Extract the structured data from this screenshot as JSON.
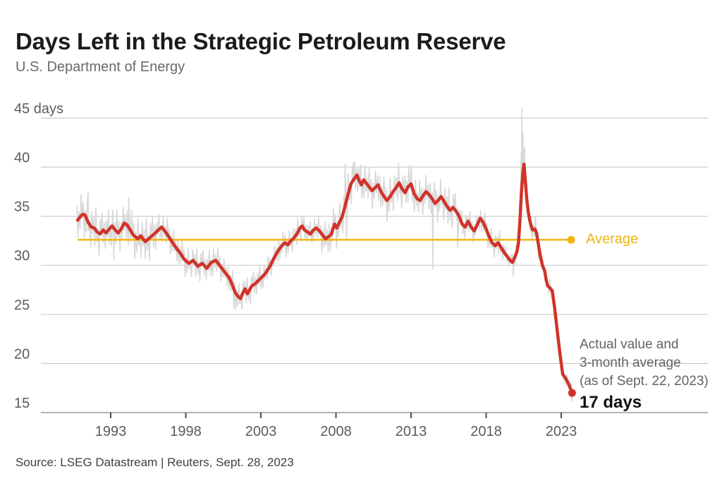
{
  "header": {
    "title": "Days Left in the Strategic Petroleum Reserve",
    "subtitle": "U.S. Department of Energy"
  },
  "source": "Source: LSEG Datastream | Reuters, Sept. 28, 2023",
  "colors": {
    "red": "#d0332a",
    "gray_series": "#d8d8d8",
    "yellow": "#f1b40f",
    "grid": "#cdcdcd",
    "axis": "#9e9e9e",
    "tick": "#4c4c4c",
    "title_text": "#1b1b1b",
    "muted_text": "#636363"
  },
  "chart_data": {
    "type": "line",
    "title": "Days Left in the Strategic Petroleum Reserve",
    "subtitle": "U.S. Department of Energy",
    "unit": "days",
    "ylim": [
      15,
      45
    ],
    "xlim": [
      1990.5,
      2024.3
    ],
    "grid": "horizontal",
    "legend_position": "none",
    "y_ticks": [
      {
        "value": 45,
        "label": "45 days"
      },
      {
        "value": 40,
        "label": "40"
      },
      {
        "value": 35,
        "label": "35"
      },
      {
        "value": 30,
        "label": "30"
      },
      {
        "value": 25,
        "label": "25"
      },
      {
        "value": 20,
        "label": "20"
      },
      {
        "value": 15,
        "label": "15"
      }
    ],
    "x_ticks": [
      "1993",
      "1998",
      "2003",
      "2008",
      "2013",
      "2018",
      "2023"
    ],
    "average": {
      "label": "Average",
      "value": 32.6,
      "x_start": 1990.8,
      "x_end": 2023.66
    },
    "annotation": {
      "lines": [
        "Actual value and",
        "3-month average",
        "(as of Sept. 22, 2023)"
      ],
      "end_label": "17 days",
      "end_value": 17,
      "end_year": 2023.72
    },
    "series": [
      {
        "name": "3-month average",
        "color_key": "red",
        "points": [
          [
            1990.8,
            34.6
          ],
          [
            1991.0,
            35.0
          ],
          [
            1991.15,
            35.2
          ],
          [
            1991.3,
            35.1
          ],
          [
            1991.5,
            34.4
          ],
          [
            1991.7,
            33.9
          ],
          [
            1991.9,
            33.8
          ],
          [
            1992.1,
            33.4
          ],
          [
            1992.3,
            33.2
          ],
          [
            1992.5,
            33.6
          ],
          [
            1992.7,
            33.3
          ],
          [
            1992.9,
            33.7
          ],
          [
            1993.1,
            34.0
          ],
          [
            1993.3,
            33.6
          ],
          [
            1993.5,
            33.3
          ],
          [
            1993.7,
            33.7
          ],
          [
            1993.9,
            34.3
          ],
          [
            1994.1,
            34.1
          ],
          [
            1994.3,
            33.6
          ],
          [
            1994.5,
            33.1
          ],
          [
            1994.8,
            32.7
          ],
          [
            1995.0,
            33.0
          ],
          [
            1995.3,
            32.4
          ],
          [
            1995.6,
            32.8
          ],
          [
            1995.9,
            33.2
          ],
          [
            1996.1,
            33.5
          ],
          [
            1996.4,
            33.9
          ],
          [
            1996.7,
            33.3
          ],
          [
            1997.0,
            32.6
          ],
          [
            1997.3,
            31.9
          ],
          [
            1997.6,
            31.3
          ],
          [
            1997.9,
            30.6
          ],
          [
            1998.2,
            30.2
          ],
          [
            1998.5,
            30.5
          ],
          [
            1998.8,
            29.9
          ],
          [
            1999.1,
            30.2
          ],
          [
            1999.4,
            29.7
          ],
          [
            1999.7,
            30.3
          ],
          [
            2000.0,
            30.5
          ],
          [
            2000.3,
            29.9
          ],
          [
            2000.6,
            29.3
          ],
          [
            2000.9,
            28.7
          ],
          [
            2001.1,
            28.0
          ],
          [
            2001.3,
            27.2
          ],
          [
            2001.5,
            26.8
          ],
          [
            2001.65,
            26.6
          ],
          [
            2001.8,
            27.2
          ],
          [
            2001.95,
            27.6
          ],
          [
            2002.1,
            27.1
          ],
          [
            2002.25,
            27.5
          ],
          [
            2002.4,
            27.9
          ],
          [
            2002.6,
            28.1
          ],
          [
            2002.8,
            28.4
          ],
          [
            2003.0,
            28.7
          ],
          [
            2003.2,
            29.0
          ],
          [
            2003.4,
            29.4
          ],
          [
            2003.6,
            29.9
          ],
          [
            2003.8,
            30.5
          ],
          [
            2004.0,
            31.1
          ],
          [
            2004.2,
            31.6
          ],
          [
            2004.4,
            32.0
          ],
          [
            2004.6,
            32.3
          ],
          [
            2004.8,
            32.1
          ],
          [
            2005.0,
            32.5
          ],
          [
            2005.2,
            32.8
          ],
          [
            2005.4,
            33.2
          ],
          [
            2005.6,
            33.8
          ],
          [
            2005.75,
            34.0
          ],
          [
            2005.9,
            33.6
          ],
          [
            2006.1,
            33.4
          ],
          [
            2006.3,
            33.2
          ],
          [
            2006.5,
            33.6
          ],
          [
            2006.7,
            33.8
          ],
          [
            2006.9,
            33.5
          ],
          [
            2007.1,
            33.1
          ],
          [
            2007.3,
            32.7
          ],
          [
            2007.5,
            32.9
          ],
          [
            2007.7,
            33.2
          ],
          [
            2007.9,
            34.2
          ],
          [
            2008.05,
            33.8
          ],
          [
            2008.2,
            34.3
          ],
          [
            2008.4,
            34.9
          ],
          [
            2008.6,
            36.0
          ],
          [
            2008.8,
            37.2
          ],
          [
            2009.0,
            38.3
          ],
          [
            2009.2,
            38.8
          ],
          [
            2009.4,
            39.2
          ],
          [
            2009.55,
            38.6
          ],
          [
            2009.7,
            38.2
          ],
          [
            2009.85,
            38.7
          ],
          [
            2010.0,
            38.4
          ],
          [
            2010.2,
            38.0
          ],
          [
            2010.4,
            37.6
          ],
          [
            2010.6,
            37.9
          ],
          [
            2010.8,
            38.2
          ],
          [
            2011.0,
            37.5
          ],
          [
            2011.2,
            37.0
          ],
          [
            2011.4,
            36.6
          ],
          [
            2011.6,
            37.0
          ],
          [
            2011.8,
            37.5
          ],
          [
            2012.0,
            37.9
          ],
          [
            2012.2,
            38.4
          ],
          [
            2012.4,
            37.8
          ],
          [
            2012.6,
            37.4
          ],
          [
            2012.8,
            38.0
          ],
          [
            2013.0,
            38.3
          ],
          [
            2013.2,
            37.3
          ],
          [
            2013.4,
            36.8
          ],
          [
            2013.6,
            36.6
          ],
          [
            2013.8,
            37.1
          ],
          [
            2014.0,
            37.5
          ],
          [
            2014.2,
            37.2
          ],
          [
            2014.4,
            36.8
          ],
          [
            2014.6,
            36.3
          ],
          [
            2014.8,
            36.6
          ],
          [
            2015.0,
            37.0
          ],
          [
            2015.2,
            36.5
          ],
          [
            2015.4,
            36.0
          ],
          [
            2015.6,
            35.6
          ],
          [
            2015.8,
            35.9
          ],
          [
            2016.0,
            35.5
          ],
          [
            2016.2,
            35.0
          ],
          [
            2016.4,
            34.2
          ],
          [
            2016.6,
            33.9
          ],
          [
            2016.8,
            34.5
          ],
          [
            2017.0,
            33.9
          ],
          [
            2017.2,
            33.5
          ],
          [
            2017.4,
            34.1
          ],
          [
            2017.6,
            34.8
          ],
          [
            2017.8,
            34.4
          ],
          [
            2018.0,
            33.7
          ],
          [
            2018.2,
            32.9
          ],
          [
            2018.4,
            32.3
          ],
          [
            2018.6,
            32.0
          ],
          [
            2018.8,
            32.3
          ],
          [
            2019.0,
            31.8
          ],
          [
            2019.2,
            31.3
          ],
          [
            2019.4,
            30.9
          ],
          [
            2019.6,
            30.5
          ],
          [
            2019.75,
            30.3
          ],
          [
            2019.9,
            30.8
          ],
          [
            2020.05,
            31.4
          ],
          [
            2020.15,
            32.3
          ],
          [
            2020.25,
            34.5
          ],
          [
            2020.35,
            37.5
          ],
          [
            2020.45,
            39.5
          ],
          [
            2020.52,
            40.3
          ],
          [
            2020.6,
            38.8
          ],
          [
            2020.7,
            36.8
          ],
          [
            2020.8,
            35.5
          ],
          [
            2020.9,
            34.6
          ],
          [
            2021.0,
            34.0
          ],
          [
            2021.1,
            33.6
          ],
          [
            2021.25,
            33.7
          ],
          [
            2021.35,
            33.3
          ],
          [
            2021.45,
            32.4
          ],
          [
            2021.6,
            31.0
          ],
          [
            2021.75,
            30.0
          ],
          [
            2021.9,
            29.4
          ],
          [
            2022.0,
            28.5
          ],
          [
            2022.1,
            27.9
          ],
          [
            2022.25,
            27.7
          ],
          [
            2022.4,
            27.4
          ],
          [
            2022.55,
            25.8
          ],
          [
            2022.7,
            23.8
          ],
          [
            2022.85,
            21.8
          ],
          [
            2023.0,
            20.0
          ],
          [
            2023.1,
            18.9
          ],
          [
            2023.25,
            18.6
          ],
          [
            2023.4,
            18.2
          ],
          [
            2023.55,
            17.7
          ],
          [
            2023.72,
            17.0
          ]
        ]
      },
      {
        "name": "Actual value",
        "color_key": "gray_series",
        "generated_from": "3-month average",
        "start": 1990.75,
        "end": 2023.74,
        "noise_step_years": 0.07,
        "noise_pattern": [
          0.62,
          -0.78,
          0.31,
          -0.52,
          0.95,
          -0.18,
          0.55,
          -1.0,
          0.22,
          -0.63,
          0.88,
          -0.35,
          0.12,
          -0.92,
          0.7,
          -0.28,
          0.48,
          -0.75,
          1.0,
          -0.45,
          0.18,
          -0.98,
          0.65,
          -0.08,
          0.82,
          -0.58,
          0.38,
          -0.72,
          0.52,
          -0.25,
          0.9,
          -0.68,
          0.15,
          -0.85,
          0.75,
          -0.4,
          0.3,
          -0.6,
          0.95,
          -0.2,
          0.5,
          -0.88,
          0.28,
          -0.5,
          0.8,
          -0.32,
          0.42,
          -0.7
        ],
        "noise_segments": [
          {
            "from": 1990.75,
            "to": 1996.0,
            "amp": 2.3
          },
          {
            "from": 1996.0,
            "to": 2000.0,
            "amp": 1.7
          },
          {
            "from": 2000.0,
            "to": 2003.0,
            "amp": 1.6
          },
          {
            "from": 2003.0,
            "to": 2007.0,
            "amp": 1.4
          },
          {
            "from": 2007.0,
            "to": 2016.0,
            "amp": 2.1
          },
          {
            "from": 2016.0,
            "to": 2019.0,
            "amp": 1.4
          },
          {
            "from": 2019.0,
            "to": 2020.2,
            "amp": 1.0
          },
          {
            "from": 2020.2,
            "to": 2020.7,
            "amp": 1.8
          },
          {
            "from": 2020.7,
            "to": 2021.6,
            "amp": 1.4
          },
          {
            "from": 2021.6,
            "to": 2023.74,
            "amp": 0.8
          }
        ],
        "extra_points": [
          [
            1991.5,
            37.4
          ],
          [
            1993.2,
            30.6
          ],
          [
            1994.2,
            36.9
          ],
          [
            2001.2,
            25.6
          ],
          [
            2008.6,
            40.3
          ],
          [
            2008.7,
            32.6
          ],
          [
            2009.15,
            40.4
          ],
          [
            2012.85,
            40.1
          ],
          [
            2014.45,
            29.6
          ],
          [
            2016.1,
            31.8
          ],
          [
            2019.8,
            28.9
          ],
          [
            2020.28,
            37.0
          ],
          [
            2020.33,
            41.5
          ],
          [
            2020.37,
            46.0
          ],
          [
            2020.41,
            40.5
          ],
          [
            2020.45,
            43.5
          ],
          [
            2020.5,
            41.0
          ],
          [
            2020.56,
            42.0
          ],
          [
            2020.63,
            38.5
          ],
          [
            2023.68,
            16.2
          ],
          [
            2023.74,
            16.4
          ]
        ]
      }
    ]
  }
}
